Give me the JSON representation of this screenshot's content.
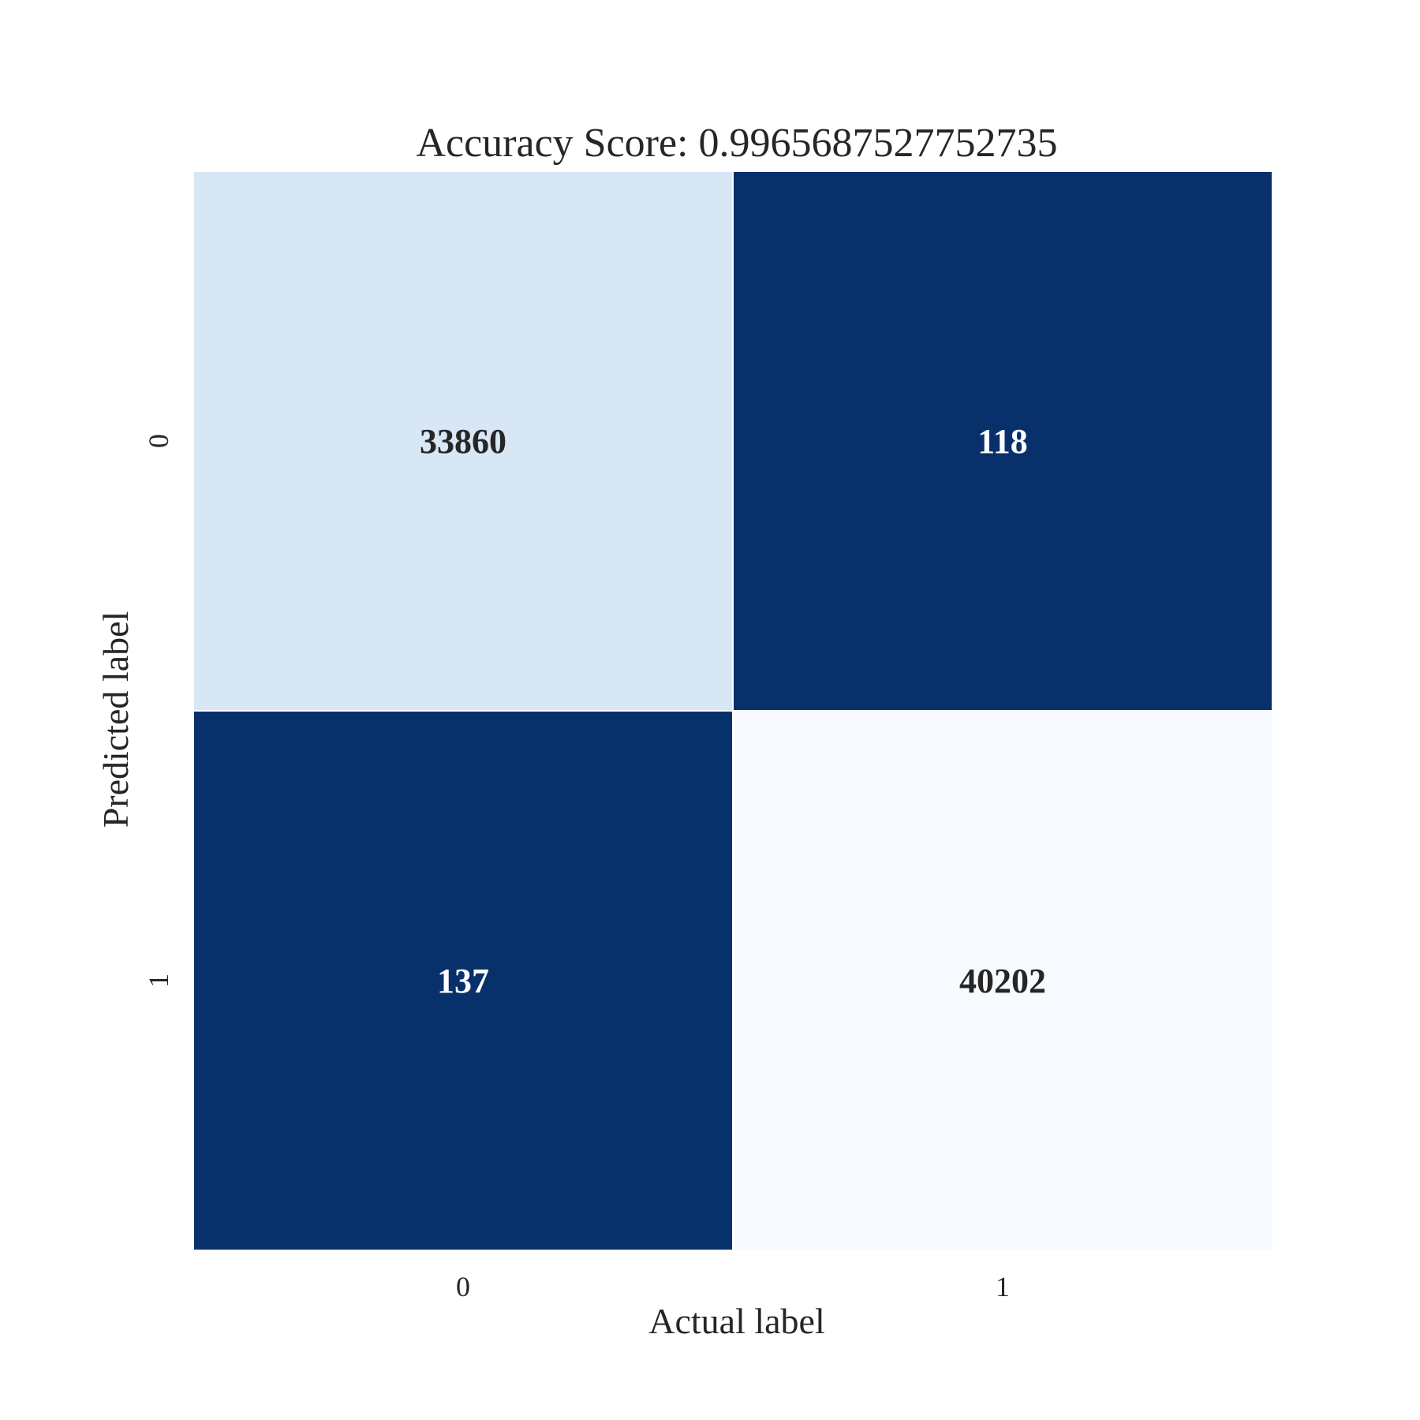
{
  "chart_data": {
    "type": "heatmap",
    "title": "Accuracy Score: 0.9965687527752735",
    "xlabel": "Actual label",
    "ylabel": "Predicted label",
    "x_categories": [
      "0",
      "1"
    ],
    "y_categories": [
      "0",
      "1"
    ],
    "matrix": [
      [
        33860,
        118
      ],
      [
        137,
        40202
      ]
    ],
    "colormap": "Blues",
    "colorbar": false,
    "cell_colors": [
      [
        "#d8e7f5",
        "#08306b"
      ],
      [
        "#08306b",
        "#f7fbff"
      ]
    ],
    "cell_text_colors": [
      [
        "#262626",
        "#ffffff"
      ],
      [
        "#ffffff",
        "#262626"
      ]
    ]
  }
}
